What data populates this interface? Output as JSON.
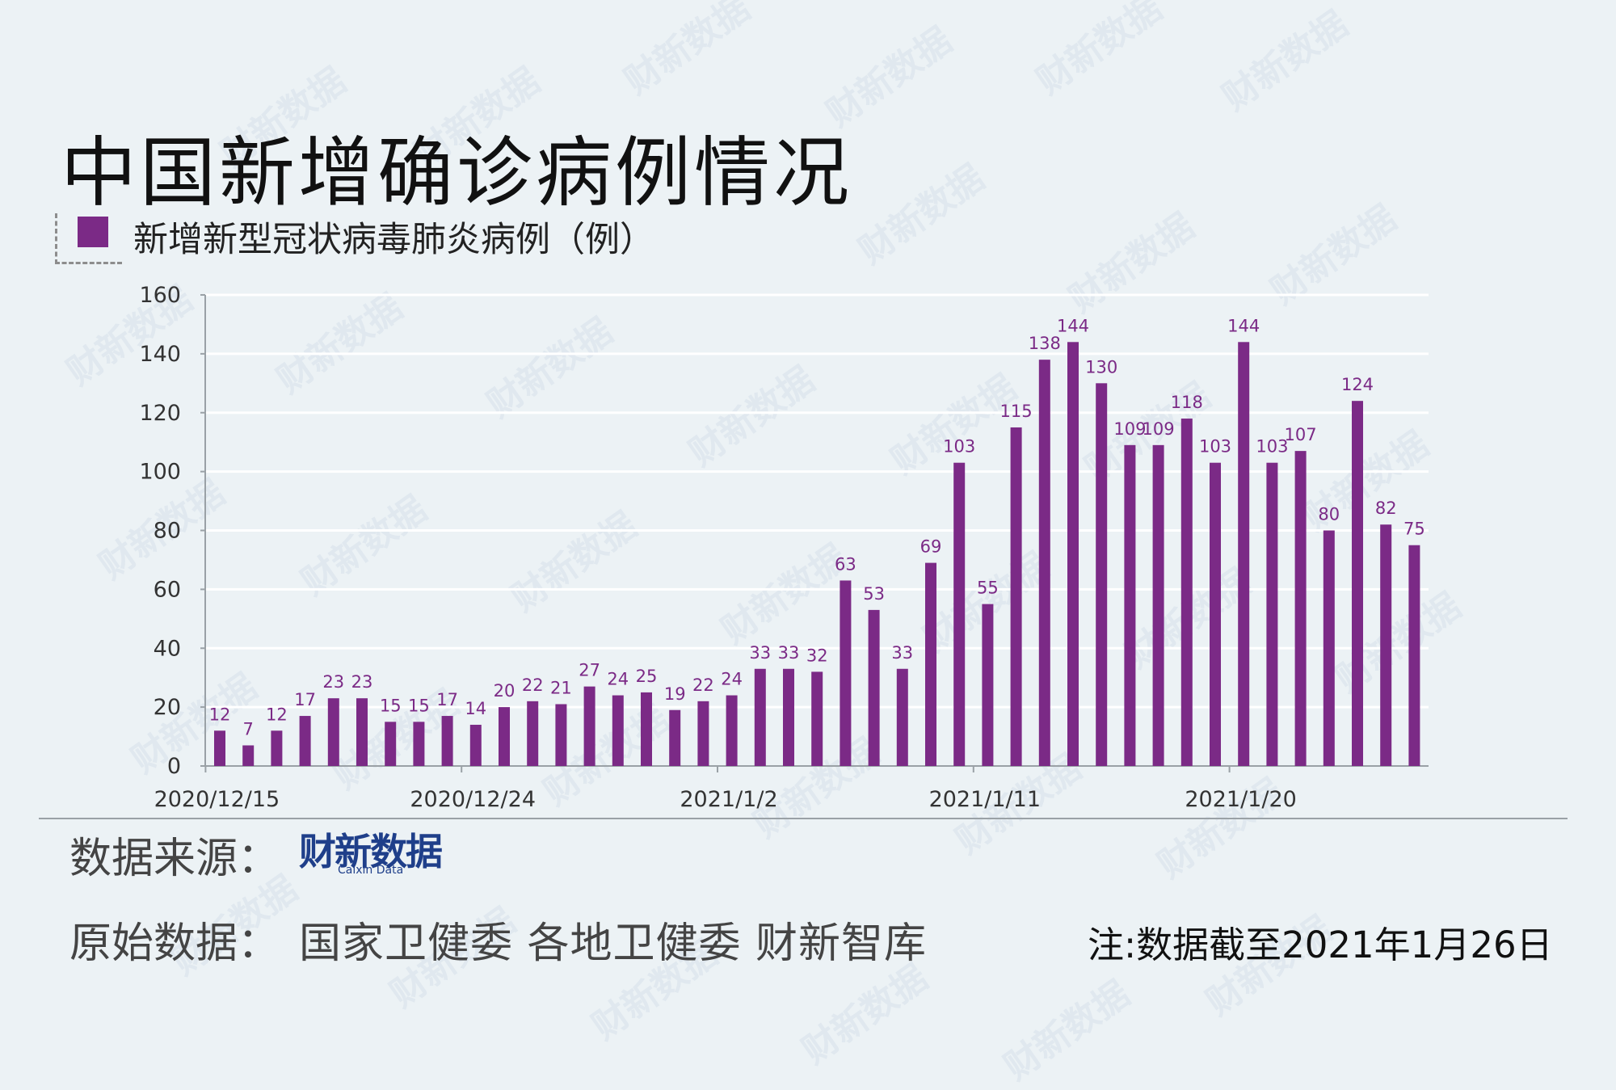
{
  "title": "中国新增确诊病例情况",
  "legend": {
    "label": "新增新型冠状病毒肺炎病例（例）",
    "color": "#7b2a86"
  },
  "source": {
    "label": "数据来源：",
    "logo_main": "财新数据",
    "logo_sub": "Caixin Data"
  },
  "raw_data": {
    "label": "原始数据：",
    "value": "国家卫健委  各地卫健委  财新智库"
  },
  "note": "注:数据截至2021年1月26日",
  "watermark_text": "财新数据",
  "colors": {
    "background": "#ecf2f5",
    "bar": "#7b2a86",
    "data_label": "#7b2a86",
    "grid": "#ffffff",
    "axis": "#9aa1a6"
  },
  "chart_data": {
    "type": "bar",
    "x": [
      "2020/12/15",
      "2020/12/16",
      "2020/12/17",
      "2020/12/18",
      "2020/12/19",
      "2020/12/20",
      "2020/12/21",
      "2020/12/22",
      "2020/12/23",
      "2020/12/24",
      "2020/12/25",
      "2020/12/26",
      "2020/12/27",
      "2020/12/28",
      "2020/12/29",
      "2020/12/30",
      "2020/12/31",
      "2021/1/1",
      "2021/1/2",
      "2021/1/3",
      "2021/1/4",
      "2021/1/5",
      "2021/1/6",
      "2021/1/7",
      "2021/1/8",
      "2021/1/9",
      "2021/1/10",
      "2021/1/11",
      "2021/1/12",
      "2021/1/13",
      "2021/1/14",
      "2021/1/15",
      "2021/1/16",
      "2021/1/17",
      "2021/1/18",
      "2021/1/19",
      "2021/1/20",
      "2021/1/21",
      "2021/1/22",
      "2021/1/23",
      "2021/1/24",
      "2021/1/25",
      "2021/1/26"
    ],
    "values": [
      12,
      7,
      12,
      17,
      23,
      23,
      15,
      15,
      17,
      14,
      20,
      22,
      21,
      27,
      24,
      25,
      19,
      22,
      24,
      33,
      33,
      32,
      63,
      53,
      33,
      69,
      103,
      55,
      115,
      138,
      144,
      130,
      109,
      109,
      118,
      103,
      144,
      103,
      107,
      80,
      124,
      82,
      75
    ],
    "x_tick_labels": [
      "2020/12/15",
      "2020/12/24",
      "2021/1/2",
      "2021/1/11",
      "2021/1/20"
    ],
    "x_tick_indices": [
      0,
      9,
      18,
      27,
      36
    ],
    "ylim": [
      0,
      160
    ],
    "y_ticks": [
      0,
      20,
      40,
      60,
      80,
      100,
      120,
      140,
      160
    ],
    "grid": true,
    "legend_position": "top-left",
    "data_labels": true
  }
}
